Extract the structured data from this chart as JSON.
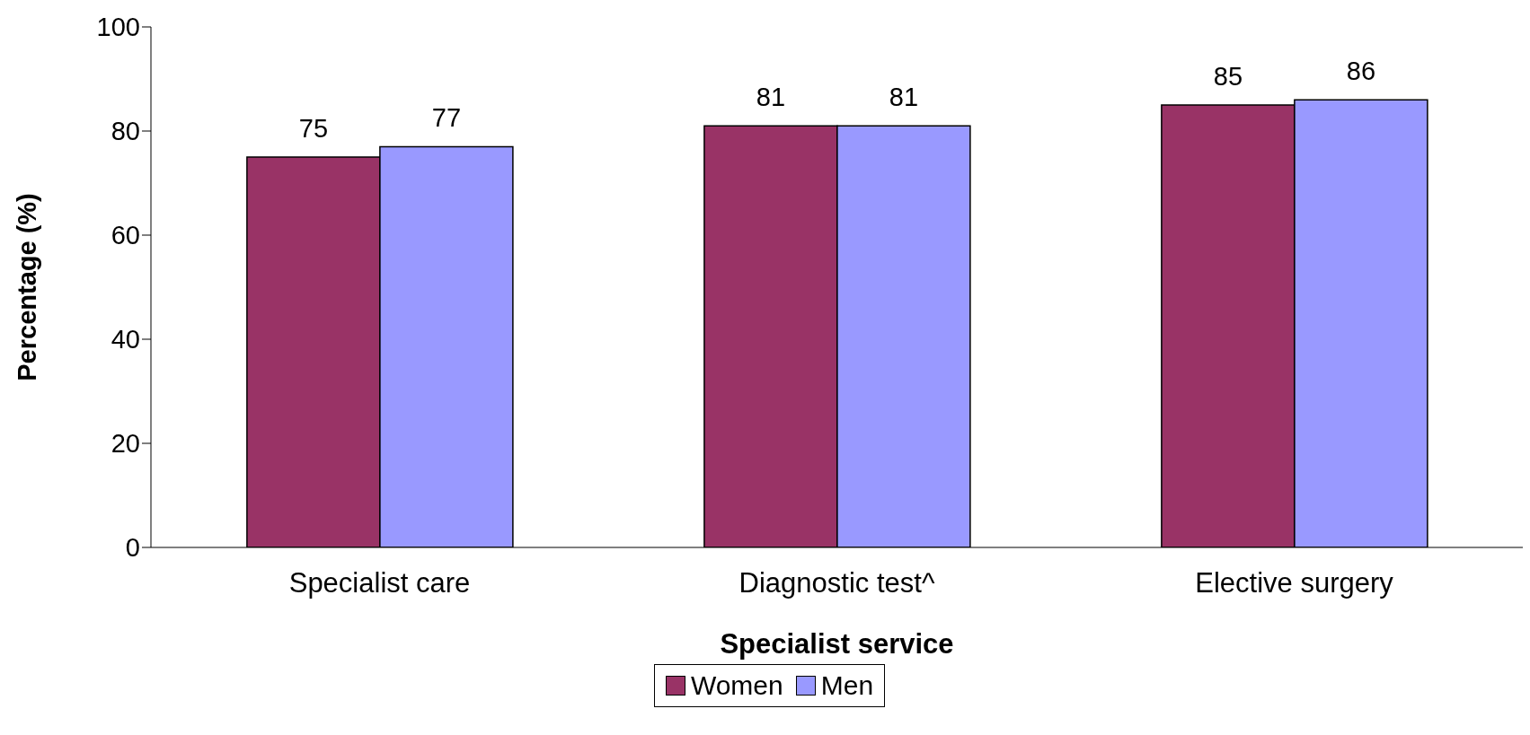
{
  "chart_data": {
    "type": "bar",
    "categories": [
      "Specialist care",
      "Diagnostic test^",
      "Elective surgery"
    ],
    "xlabel": "Specialist service",
    "ylabel": "Percentage (%)",
    "series": [
      {
        "name": "Women",
        "color": "#993366",
        "values": [
          75,
          81,
          85
        ]
      },
      {
        "name": "Men",
        "color": "#9999ff",
        "values": [
          77,
          81,
          86
        ]
      }
    ],
    "ylim": [
      0,
      100
    ],
    "yticks": [
      0,
      20,
      40,
      60,
      80,
      100
    ],
    "grid": false,
    "legend": "bottom",
    "data_labels": true
  }
}
